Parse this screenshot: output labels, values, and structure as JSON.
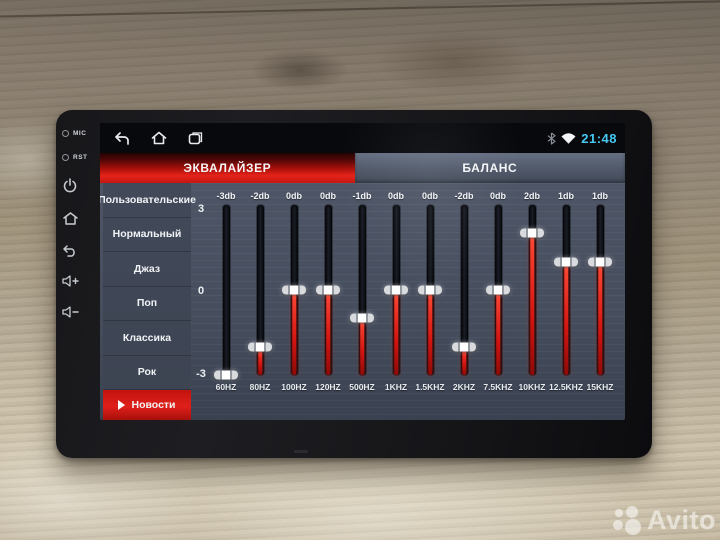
{
  "status_bar": {
    "time": "21:48",
    "icons": [
      "bluetooth-icon",
      "wifi-icon"
    ],
    "nav_icons": [
      "back-icon",
      "home-icon",
      "recents-icon"
    ]
  },
  "tabs": [
    {
      "label": "ЭКВАЛАЙЗЕР",
      "active": true
    },
    {
      "label": "БАЛАНС",
      "active": false
    }
  ],
  "sidebar": {
    "items": [
      {
        "label": "Пользовательские",
        "active": false
      },
      {
        "label": "Нормальный",
        "active": false
      },
      {
        "label": "Джаз",
        "active": false
      },
      {
        "label": "Поп",
        "active": false
      },
      {
        "label": "Классика",
        "active": false
      },
      {
        "label": "Рок",
        "active": false
      },
      {
        "label": "Новости",
        "active": true,
        "icon": "play-icon"
      }
    ]
  },
  "equalizer": {
    "scale": {
      "top": "3",
      "mid": "0",
      "bottom": "-3"
    },
    "range": [
      -3,
      3
    ],
    "bands": [
      {
        "freq": "60HZ",
        "db_label": "-3db",
        "value": -3
      },
      {
        "freq": "80HZ",
        "db_label": "-2db",
        "value": -2
      },
      {
        "freq": "100HZ",
        "db_label": "0db",
        "value": 0
      },
      {
        "freq": "120HZ",
        "db_label": "0db",
        "value": 0
      },
      {
        "freq": "500HZ",
        "db_label": "-1db",
        "value": -1
      },
      {
        "freq": "1KHZ",
        "db_label": "0db",
        "value": 0
      },
      {
        "freq": "1.5KHZ",
        "db_label": "0db",
        "value": 0
      },
      {
        "freq": "2KHZ",
        "db_label": "-2db",
        "value": -2
      },
      {
        "freq": "7.5KHZ",
        "db_label": "0db",
        "value": 0
      },
      {
        "freq": "10KHZ",
        "db_label": "2db",
        "value": 2
      },
      {
        "freq": "12.5KHZ",
        "db_label": "1db",
        "value": 1
      },
      {
        "freq": "15KHZ",
        "db_label": "1db",
        "value": 1
      }
    ]
  },
  "device": {
    "side_buttons": [
      {
        "label": "MIC",
        "icon": "mic-hole-icon"
      },
      {
        "label": "RST",
        "icon": "reset-hole-icon"
      },
      {
        "label": "",
        "icon": "power-icon"
      },
      {
        "label": "",
        "icon": "home-icon"
      },
      {
        "label": "",
        "icon": "back-icon"
      },
      {
        "label": "",
        "icon": "volume-up-icon"
      },
      {
        "label": "",
        "icon": "volume-down-icon"
      }
    ]
  },
  "watermark": {
    "text": "Avito"
  },
  "colors": {
    "accent_red": "#e5231a",
    "time_cyan": "#46c8f2",
    "panel_slate": "#464e5e",
    "sidebar_slate": "#3e4553",
    "fill_red": "#d31410"
  }
}
